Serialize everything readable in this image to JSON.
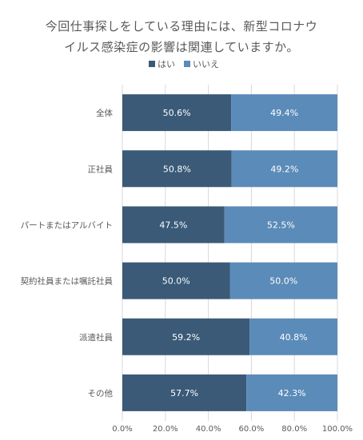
{
  "chart_data": {
    "type": "bar",
    "orientation": "horizontal",
    "stacked": true,
    "title_lines": [
      "今回仕事探しをしている理由には、新型コロナウ",
      "イルス感染症の影響は関連していますか。"
    ],
    "categories": [
      "全体",
      "正社員",
      "パートまたはアルバイト",
      "契約社員または嘱託社員",
      "派遣社員",
      "その他"
    ],
    "series": [
      {
        "name": "はい",
        "values": [
          50.6,
          50.8,
          47.5,
          50.0,
          59.2,
          57.7
        ],
        "labels": [
          "50.6%",
          "50.8%",
          "47.5%",
          "50.0%",
          "59.2%",
          "57.7%"
        ]
      },
      {
        "name": "いいえ",
        "values": [
          49.4,
          49.2,
          52.5,
          50.0,
          40.8,
          42.3
        ],
        "labels": [
          "49.4%",
          "49.2%",
          "52.5%",
          "50.0%",
          "40.8%",
          "42.3%"
        ]
      }
    ],
    "xlim": [
      0,
      100
    ],
    "x_ticks": [
      "0.0%",
      "20.0%",
      "40.0%",
      "60.0%",
      "80.0%",
      "100.0%"
    ],
    "grid": true,
    "legend_position": "top",
    "colors": {
      "yes": "#3a5a78",
      "no": "#5b8bb8",
      "grid": "#d9d9d9",
      "label_text": "#ffffff",
      "axis_text": "#595959"
    }
  }
}
